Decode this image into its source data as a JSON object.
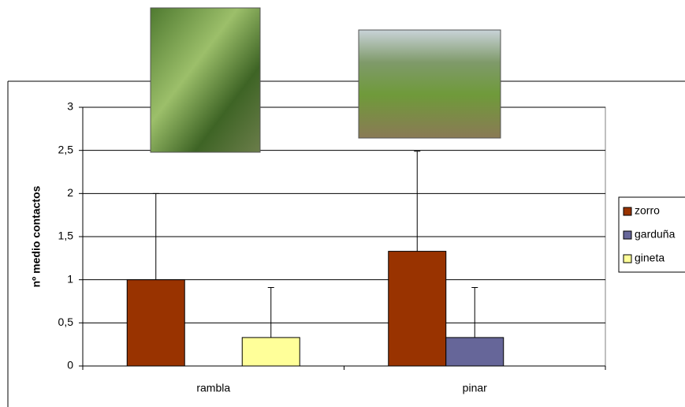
{
  "chart_data": {
    "type": "bar",
    "y_label": "nº medio contactos",
    "categories": [
      "rambla",
      "pinar"
    ],
    "series": [
      {
        "name": "zorro",
        "color": "#993300",
        "values": [
          1,
          1.33
        ],
        "errors": [
          1,
          1.16
        ]
      },
      {
        "name": "garduña",
        "color": "#666699",
        "values": [
          0,
          0.33
        ],
        "errors": [
          0,
          0.58
        ]
      },
      {
        "name": "gineta",
        "color": "#ffff99",
        "values": [
          0.33,
          0
        ],
        "errors": [
          0.58,
          0
        ]
      }
    ],
    "ylim": [
      0,
      3
    ],
    "yticks": [
      0,
      {
        "value": 0.5,
        "label": "0,5"
      },
      1,
      {
        "value": 1.5,
        "label": "1,5"
      },
      2,
      {
        "value": 2.5,
        "label": "2,5"
      },
      3
    ],
    "grid": true,
    "legend": "right"
  }
}
